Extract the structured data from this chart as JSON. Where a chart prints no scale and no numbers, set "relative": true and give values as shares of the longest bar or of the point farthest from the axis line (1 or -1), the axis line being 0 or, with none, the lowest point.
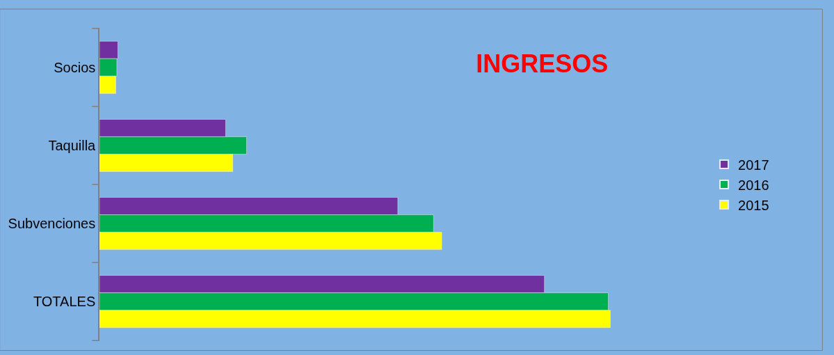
{
  "chart_data": {
    "type": "bar",
    "orientation": "horizontal",
    "relative": true,
    "title": "INGRESOS",
    "categories": [
      "Socios",
      "Taquilla",
      "Subvenciones",
      "TOTALES"
    ],
    "series": [
      {
        "name": "2017",
        "color": "#7030a0",
        "values": [
          0.036,
          0.247,
          0.584,
          0.871
        ]
      },
      {
        "name": "2016",
        "color": "#00b050",
        "values": [
          0.034,
          0.288,
          0.654,
          0.996
        ]
      },
      {
        "name": "2015",
        "color": "#ffff00",
        "values": [
          0.032,
          0.261,
          0.67,
          1
        ]
      }
    ],
    "legend": "right"
  }
}
